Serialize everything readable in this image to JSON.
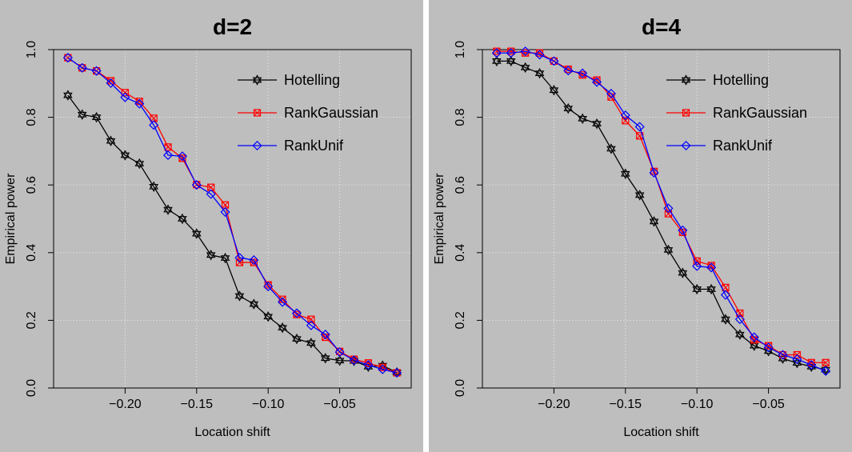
{
  "panel_background": "#bebebe",
  "chart_data": [
    {
      "type": "line",
      "title": "d=2",
      "xlabel": "Location shift",
      "ylabel": "Empirical power",
      "xlim": [
        -0.25,
        0
      ],
      "ylim": [
        0,
        1
      ],
      "xticks": [
        -0.2,
        -0.15,
        -0.1,
        -0.05
      ],
      "xtick_labels": [
        "−0.20",
        "−0.15",
        "−0.10",
        "−0.05"
      ],
      "yticks": [
        0.0,
        0.2,
        0.4,
        0.6,
        0.8,
        1.0
      ],
      "ytick_labels": [
        "0.0",
        "0.2",
        "0.4",
        "0.6",
        "0.8",
        "1.0"
      ],
      "grid": true,
      "legend_position": "top-right",
      "x": [
        -0.24,
        -0.23,
        -0.22,
        -0.21,
        -0.2,
        -0.19,
        -0.18,
        -0.17,
        -0.16,
        -0.15,
        -0.14,
        -0.13,
        -0.12,
        -0.11,
        -0.1,
        -0.09,
        -0.08,
        -0.07,
        -0.06,
        -0.05,
        -0.04,
        -0.03,
        -0.02,
        -0.01
      ],
      "series": [
        {
          "name": "Hotelling",
          "color": "#000000",
          "marker": "star",
          "values": [
            0.865,
            0.808,
            0.8,
            0.73,
            0.688,
            0.663,
            0.595,
            0.527,
            0.5,
            0.456,
            0.393,
            0.384,
            0.272,
            0.248,
            0.211,
            0.178,
            0.145,
            0.133,
            0.088,
            0.081,
            0.08,
            0.063,
            0.066,
            0.046
          ]
        },
        {
          "name": "RankGaussian",
          "color": "#ff0000",
          "marker": "boxed-x",
          "values": [
            0.976,
            0.946,
            0.937,
            0.908,
            0.873,
            0.847,
            0.797,
            0.712,
            0.679,
            0.601,
            0.593,
            0.541,
            0.371,
            0.371,
            0.305,
            0.262,
            0.217,
            0.203,
            0.15,
            0.108,
            0.085,
            0.074,
            0.061,
            0.045
          ]
        },
        {
          "name": "RankUnif",
          "color": "#0000ff",
          "marker": "diamond",
          "values": [
            0.976,
            0.946,
            0.937,
            0.901,
            0.859,
            0.84,
            0.777,
            0.688,
            0.685,
            0.6,
            0.573,
            0.52,
            0.385,
            0.378,
            0.3,
            0.254,
            0.221,
            0.185,
            0.158,
            0.106,
            0.082,
            0.068,
            0.055,
            0.045
          ]
        }
      ]
    },
    {
      "type": "line",
      "title": "d=4",
      "xlabel": "Location shift",
      "ylabel": "Empirical power",
      "xlim": [
        -0.25,
        0
      ],
      "ylim": [
        0,
        1
      ],
      "xticks": [
        -0.2,
        -0.15,
        -0.1,
        -0.05
      ],
      "xtick_labels": [
        "−0.20",
        "−0.15",
        "−0.10",
        "−0.05"
      ],
      "yticks": [
        0.0,
        0.2,
        0.4,
        0.6,
        0.8,
        1.0
      ],
      "ytick_labels": [
        "0.0",
        "0.2",
        "0.4",
        "0.6",
        "0.8",
        "1.0"
      ],
      "grid": true,
      "legend_position": "top-right",
      "x": [
        -0.24,
        -0.23,
        -0.22,
        -0.21,
        -0.2,
        -0.19,
        -0.18,
        -0.17,
        -0.16,
        -0.15,
        -0.14,
        -0.13,
        -0.12,
        -0.11,
        -0.1,
        -0.09,
        -0.08,
        -0.07,
        -0.06,
        -0.05,
        -0.04,
        -0.03,
        -0.02,
        -0.01
      ],
      "series": [
        {
          "name": "Hotelling",
          "color": "#000000",
          "marker": "star",
          "values": [
            0.966,
            0.966,
            0.947,
            0.93,
            0.88,
            0.826,
            0.796,
            0.781,
            0.707,
            0.633,
            0.57,
            0.492,
            0.408,
            0.34,
            0.292,
            0.292,
            0.203,
            0.158,
            0.125,
            0.109,
            0.087,
            0.074,
            0.063,
            0.054
          ]
        },
        {
          "name": "RankGaussian",
          "color": "#ff0000",
          "marker": "boxed-x",
          "values": [
            0.995,
            0.995,
            0.99,
            0.99,
            0.966,
            0.942,
            0.925,
            0.91,
            0.86,
            0.79,
            0.745,
            0.64,
            0.515,
            0.46,
            0.375,
            0.362,
            0.297,
            0.221,
            0.142,
            0.125,
            0.098,
            0.098,
            0.075,
            0.075
          ]
        },
        {
          "name": "RankUnif",
          "color": "#0000ff",
          "marker": "diamond",
          "values": [
            0.99,
            0.99,
            0.995,
            0.985,
            0.966,
            0.938,
            0.93,
            0.904,
            0.87,
            0.806,
            0.772,
            0.636,
            0.531,
            0.466,
            0.36,
            0.356,
            0.275,
            0.203,
            0.15,
            0.12,
            0.098,
            0.085,
            0.068,
            0.05
          ]
        }
      ]
    }
  ]
}
